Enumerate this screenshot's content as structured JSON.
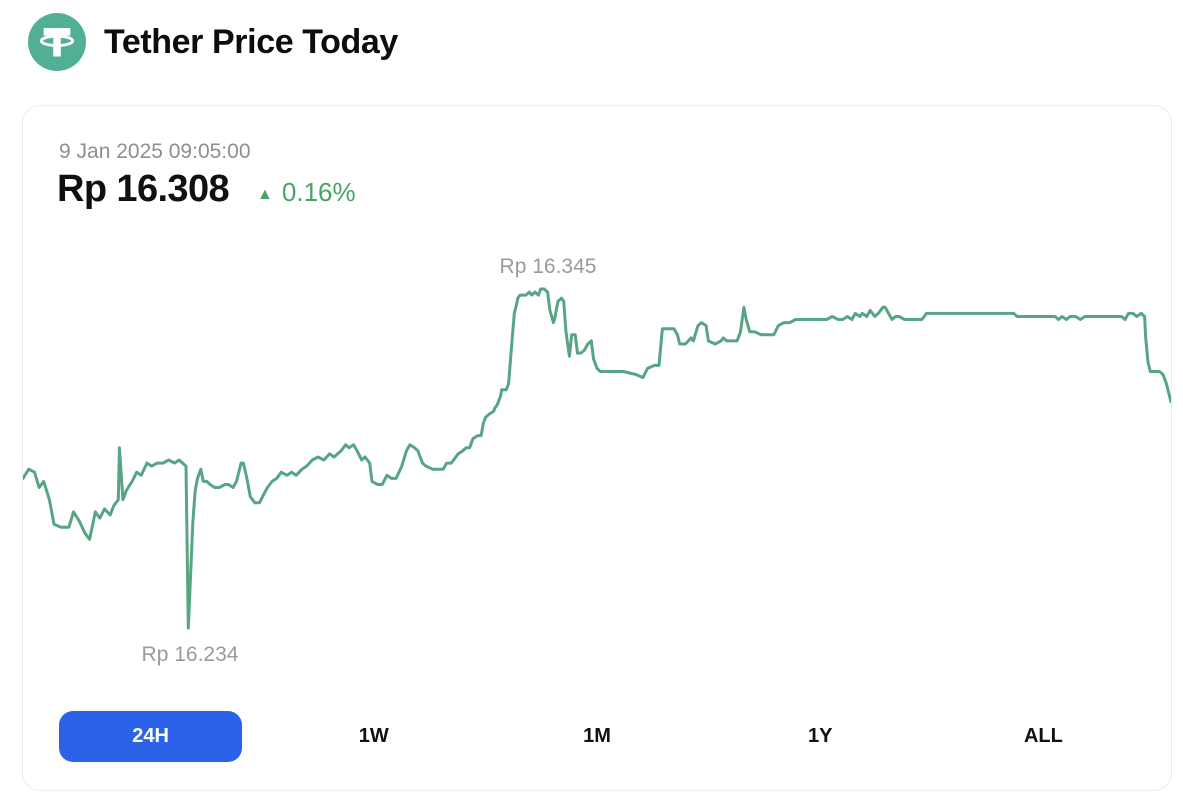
{
  "colors": {
    "accent_blue": "#2a63e8",
    "line_green": "#57a583",
    "logo_green": "#50af95",
    "change_green": "#46a565"
  },
  "header": {
    "title": "Tether Price Today"
  },
  "price_panel": {
    "timestamp": "9 Jan 2025 09:05:00",
    "price": "Rp 16.308",
    "change": "0.16%",
    "change_direction": "up",
    "arrow_glyph": "▲"
  },
  "timeframes": {
    "active_index": 0,
    "items": [
      {
        "label": "24H",
        "active": true
      },
      {
        "label": "1W",
        "active": false
      },
      {
        "label": "1M",
        "active": false
      },
      {
        "label": "1Y",
        "active": false
      },
      {
        "label": "ALL",
        "active": false
      }
    ]
  },
  "chart_data": {
    "type": "line",
    "title": "Tether price, 24H window ending 9 Jan 2025 09:05:00",
    "unit": "IDR (Rp)",
    "range": "24H",
    "grid": false,
    "legend": false,
    "current_value": 16308,
    "high": {
      "label": "Rp 16.345",
      "value": 16345
    },
    "low": {
      "label": "Rp 16.234",
      "value": 16234
    },
    "y_range": [
      16234,
      16345
    ],
    "x_axis": "fraction of 24H window (no axis drawn)",
    "points": [
      [
        0,
        16283
      ],
      [
        0.005,
        16286
      ],
      [
        0.01,
        16285
      ],
      [
        0.014,
        16280
      ],
      [
        0.018,
        16282
      ],
      [
        0.023,
        16276
      ],
      [
        0.027,
        16268
      ],
      [
        0.033,
        16267
      ],
      [
        0.04,
        16267
      ],
      [
        0.044,
        16272
      ],
      [
        0.049,
        16269
      ],
      [
        0.054,
        16265
      ],
      [
        0.058,
        16263
      ],
      [
        0.063,
        16272
      ],
      [
        0.067,
        16270
      ],
      [
        0.071,
        16273
      ],
      [
        0.076,
        16271
      ],
      [
        0.079,
        16274
      ],
      [
        0.083,
        16276
      ],
      [
        0.084,
        16293
      ],
      [
        0.087,
        16276
      ],
      [
        0.09,
        16279
      ],
      [
        0.095,
        16282
      ],
      [
        0.099,
        16285
      ],
      [
        0.103,
        16284
      ],
      [
        0.108,
        16288
      ],
      [
        0.112,
        16287
      ],
      [
        0.117,
        16288
      ],
      [
        0.122,
        16288
      ],
      [
        0.127,
        16289
      ],
      [
        0.132,
        16288
      ],
      [
        0.136,
        16289
      ],
      [
        0.139,
        16288
      ],
      [
        0.142,
        16287
      ],
      [
        0.144,
        16234
      ],
      [
        0.148,
        16269
      ],
      [
        0.15,
        16279
      ],
      [
        0.152,
        16283
      ],
      [
        0.155,
        16286
      ],
      [
        0.157,
        16282
      ],
      [
        0.16,
        16282
      ],
      [
        0.163,
        16281
      ],
      [
        0.167,
        16280
      ],
      [
        0.171,
        16280
      ],
      [
        0.176,
        16281
      ],
      [
        0.179,
        16281
      ],
      [
        0.183,
        16280
      ],
      [
        0.186,
        16282
      ],
      [
        0.19,
        16288
      ],
      [
        0.192,
        16288
      ],
      [
        0.195,
        16283
      ],
      [
        0.198,
        16277
      ],
      [
        0.202,
        16275
      ],
      [
        0.206,
        16275
      ],
      [
        0.21,
        16278
      ],
      [
        0.213,
        16280
      ],
      [
        0.217,
        16282
      ],
      [
        0.221,
        16283
      ],
      [
        0.225,
        16285
      ],
      [
        0.23,
        16284
      ],
      [
        0.234,
        16285
      ],
      [
        0.238,
        16284
      ],
      [
        0.243,
        16286
      ],
      [
        0.247,
        16287
      ],
      [
        0.252,
        16289
      ],
      [
        0.257,
        16290
      ],
      [
        0.262,
        16289
      ],
      [
        0.267,
        16291
      ],
      [
        0.271,
        16290
      ],
      [
        0.277,
        16292
      ],
      [
        0.281,
        16294
      ],
      [
        0.284,
        16293
      ],
      [
        0.288,
        16294
      ],
      [
        0.291,
        16292
      ],
      [
        0.295,
        16289
      ],
      [
        0.298,
        16290
      ],
      [
        0.302,
        16288
      ],
      [
        0.304,
        16282
      ],
      [
        0.309,
        16281
      ],
      [
        0.313,
        16281
      ],
      [
        0.317,
        16284
      ],
      [
        0.321,
        16283
      ],
      [
        0.325,
        16283
      ],
      [
        0.33,
        16287
      ],
      [
        0.334,
        16292
      ],
      [
        0.337,
        16294
      ],
      [
        0.341,
        16293
      ],
      [
        0.344,
        16292
      ],
      [
        0.348,
        16288
      ],
      [
        0.351,
        16287
      ],
      [
        0.357,
        16286
      ],
      [
        0.362,
        16286
      ],
      [
        0.366,
        16286
      ],
      [
        0.369,
        16288
      ],
      [
        0.373,
        16288
      ],
      [
        0.377,
        16290
      ],
      [
        0.379,
        16291
      ],
      [
        0.383,
        16292
      ],
      [
        0.386,
        16293
      ],
      [
        0.389,
        16293
      ],
      [
        0.392,
        16296
      ],
      [
        0.396,
        16297
      ],
      [
        0.399,
        16297
      ],
      [
        0.401,
        16301
      ],
      [
        0.403,
        16303
      ],
      [
        0.406,
        16304
      ],
      [
        0.41,
        16305
      ],
      [
        0.411,
        16306
      ],
      [
        0.413,
        16307
      ],
      [
        0.416,
        16310
      ],
      [
        0.417,
        16312
      ],
      [
        0.421,
        16312
      ],
      [
        0.423,
        16314
      ],
      [
        0.424,
        16319
      ],
      [
        0.426,
        16328
      ],
      [
        0.428,
        16337
      ],
      [
        0.43,
        16340
      ],
      [
        0.431,
        16342
      ],
      [
        0.433,
        16343
      ],
      [
        0.436,
        16343
      ],
      [
        0.438,
        16343
      ],
      [
        0.441,
        16344
      ],
      [
        0.443,
        16343
      ],
      [
        0.446,
        16344
      ],
      [
        0.449,
        16343
      ],
      [
        0.451,
        16345
      ],
      [
        0.454,
        16345
      ],
      [
        0.457,
        16344
      ],
      [
        0.459,
        16338
      ],
      [
        0.462,
        16334
      ],
      [
        0.463,
        16335
      ],
      [
        0.466,
        16341
      ],
      [
        0.469,
        16342
      ],
      [
        0.471,
        16341
      ],
      [
        0.473,
        16331
      ],
      [
        0.476,
        16323
      ],
      [
        0.478,
        16330
      ],
      [
        0.481,
        16330
      ],
      [
        0.483,
        16324
      ],
      [
        0.486,
        16324
      ],
      [
        0.489,
        16325
      ],
      [
        0.492,
        16327
      ],
      [
        0.495,
        16328
      ],
      [
        0.497,
        16322
      ],
      [
        0.5,
        16319
      ],
      [
        0.503,
        16318
      ],
      [
        0.513,
        16318
      ],
      [
        0.523,
        16318
      ],
      [
        0.534,
        16317
      ],
      [
        0.54,
        16316
      ],
      [
        0.544,
        16319
      ],
      [
        0.55,
        16320
      ],
      [
        0.554,
        16320
      ],
      [
        0.557,
        16332
      ],
      [
        0.562,
        16332
      ],
      [
        0.567,
        16332
      ],
      [
        0.57,
        16330
      ],
      [
        0.572,
        16327
      ],
      [
        0.577,
        16327
      ],
      [
        0.582,
        16329
      ],
      [
        0.584,
        16328
      ],
      [
        0.588,
        16333
      ],
      [
        0.591,
        16334
      ],
      [
        0.595,
        16333
      ],
      [
        0.597,
        16328
      ],
      [
        0.603,
        16327
      ],
      [
        0.608,
        16328
      ],
      [
        0.61,
        16329
      ],
      [
        0.613,
        16328
      ],
      [
        0.617,
        16328
      ],
      [
        0.622,
        16328
      ],
      [
        0.625,
        16331
      ],
      [
        0.628,
        16339
      ],
      [
        0.63,
        16335
      ],
      [
        0.633,
        16331
      ],
      [
        0.637,
        16331
      ],
      [
        0.643,
        16330
      ],
      [
        0.649,
        16330
      ],
      [
        0.654,
        16330
      ],
      [
        0.658,
        16333
      ],
      [
        0.663,
        16334
      ],
      [
        0.668,
        16334
      ],
      [
        0.673,
        16335
      ],
      [
        0.68,
        16335
      ],
      [
        0.687,
        16335
      ],
      [
        0.694,
        16335
      ],
      [
        0.7,
        16335
      ],
      [
        0.705,
        16336
      ],
      [
        0.71,
        16335
      ],
      [
        0.714,
        16335
      ],
      [
        0.718,
        16336
      ],
      [
        0.722,
        16335
      ],
      [
        0.725,
        16337
      ],
      [
        0.729,
        16336
      ],
      [
        0.731,
        16337
      ],
      [
        0.735,
        16336
      ],
      [
        0.738,
        16338
      ],
      [
        0.742,
        16336
      ],
      [
        0.745,
        16337
      ],
      [
        0.749,
        16339
      ],
      [
        0.751,
        16339
      ],
      [
        0.754,
        16337
      ],
      [
        0.757,
        16335
      ],
      [
        0.76,
        16336
      ],
      [
        0.763,
        16336
      ],
      [
        0.768,
        16335
      ],
      [
        0.773,
        16335
      ],
      [
        0.778,
        16335
      ],
      [
        0.783,
        16335
      ],
      [
        0.787,
        16337
      ],
      [
        0.791,
        16337
      ],
      [
        0.796,
        16337
      ],
      [
        0.799,
        16337
      ],
      [
        0.804,
        16337
      ],
      [
        0.811,
        16337
      ],
      [
        0.819,
        16337
      ],
      [
        0.828,
        16337
      ],
      [
        0.837,
        16337
      ],
      [
        0.845,
        16337
      ],
      [
        0.854,
        16337
      ],
      [
        0.863,
        16337
      ],
      [
        0.866,
        16336
      ],
      [
        0.873,
        16336
      ],
      [
        0.88,
        16336
      ],
      [
        0.887,
        16336
      ],
      [
        0.894,
        16336
      ],
      [
        0.899,
        16336
      ],
      [
        0.902,
        16335
      ],
      [
        0.905,
        16336
      ],
      [
        0.909,
        16335
      ],
      [
        0.912,
        16336
      ],
      [
        0.917,
        16336
      ],
      [
        0.921,
        16335
      ],
      [
        0.925,
        16336
      ],
      [
        0.93,
        16336
      ],
      [
        0.936,
        16336
      ],
      [
        0.941,
        16336
      ],
      [
        0.946,
        16336
      ],
      [
        0.951,
        16336
      ],
      [
        0.957,
        16336
      ],
      [
        0.96,
        16335
      ],
      [
        0.963,
        16337
      ],
      [
        0.967,
        16337
      ],
      [
        0.97,
        16336
      ],
      [
        0.974,
        16337
      ],
      [
        0.977,
        16336
      ],
      [
        0.978,
        16329
      ],
      [
        0.98,
        16321
      ],
      [
        0.982,
        16318
      ],
      [
        0.986,
        16318
      ],
      [
        0.99,
        16318
      ],
      [
        0.993,
        16317
      ],
      [
        0.996,
        16314
      ],
      [
        0.998,
        16311
      ],
      [
        1,
        16308
      ]
    ]
  }
}
